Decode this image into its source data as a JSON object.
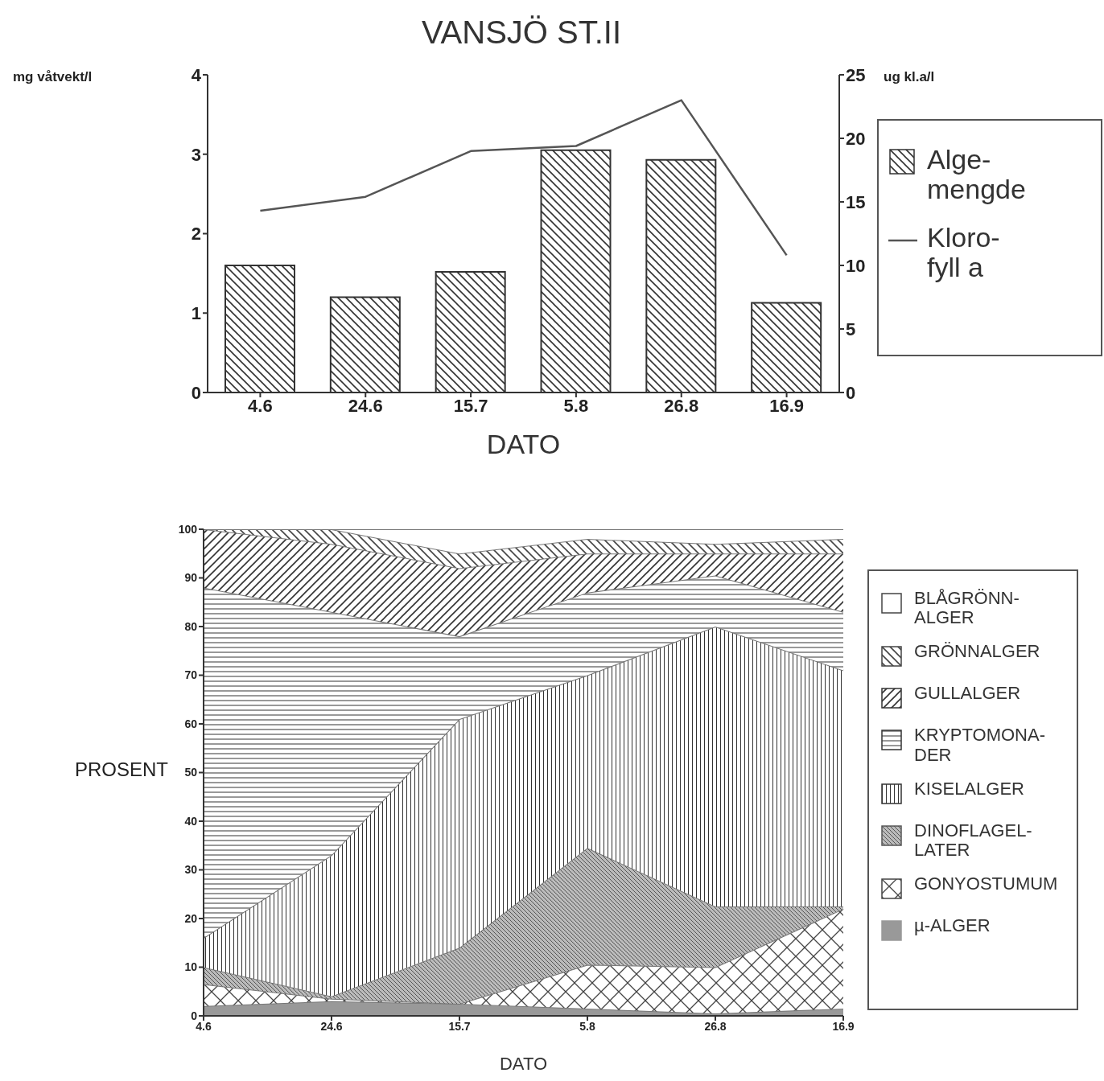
{
  "chart_data": [
    {
      "type": "bar",
      "title": "VANSJÖ ST.II",
      "xlabel": "DATO",
      "ylabel": "mg våtvekt/l",
      "y2label": "ug kl.a/l",
      "categories": [
        "4.6",
        "24.6",
        "15.7",
        "5.8",
        "26.8",
        "16.9"
      ],
      "series": [
        {
          "name": "Alge-mengde",
          "color": "#333333",
          "values": [
            1.6,
            1.2,
            1.52,
            3.05,
            2.93,
            1.13
          ]
        },
        {
          "name": "Kloro-fyll a",
          "type": "line",
          "axis": "y2",
          "color": "#555555",
          "values": [
            14.3,
            15.4,
            19,
            19.4,
            23,
            10.8
          ]
        }
      ],
      "ylim": [
        0,
        4
      ],
      "yticks": [
        0,
        1,
        2,
        3,
        4
      ],
      "y2lim": [
        0,
        25
      ],
      "y2ticks": [
        0,
        5,
        10,
        15,
        20,
        25
      ],
      "grid": false,
      "legend": "right",
      "marker": "none"
    },
    {
      "type": "area",
      "stacked": true,
      "xlabel": "DATO",
      "ylabel": "PROSENT",
      "categories": [
        "4.6",
        "24.6",
        "15.7",
        "5.8",
        "26.8",
        "16.9"
      ],
      "series": [
        {
          "name": "µ-ALGER",
          "color": "#999999",
          "values": [
            2,
            3,
            2.5,
            1.5,
            0.5,
            1.5
          ]
        },
        {
          "name": "GONYOSTUMUM",
          "color": "#444444",
          "values": [
            4.5,
            0.5,
            0,
            9,
            9.5,
            20.5
          ]
        },
        {
          "name": "DINOFLAGEL-LATER",
          "color": "#555555",
          "values": [
            3.5,
            0.5,
            11.5,
            24,
            12.5,
            0.5
          ]
        },
        {
          "name": "KISELALGER",
          "color": "#333333",
          "values": [
            6,
            29,
            47,
            35.5,
            57.5,
            48.5
          ]
        },
        {
          "name": "KRYPTOMONA-DER",
          "color": "#333333",
          "values": [
            72,
            50,
            17,
            17,
            10.5,
            12
          ]
        },
        {
          "name": "GULLALGER",
          "color": "#333333",
          "values": [
            12,
            14,
            14,
            8,
            4.5,
            12
          ]
        },
        {
          "name": "GRÖNNALGER",
          "color": "#444444",
          "values": [
            0,
            3,
            3,
            3,
            2,
            3
          ]
        },
        {
          "name": "BLÅGRÖNN-ALGER",
          "color": "#ffffff",
          "values": [
            0,
            0,
            5,
            2,
            3,
            2
          ]
        }
      ],
      "ylim": [
        0,
        100
      ],
      "yticks": [
        0,
        10,
        20,
        30,
        40,
        50,
        60,
        70,
        80,
        90,
        100
      ],
      "grid": false,
      "legend": "right"
    }
  ]
}
